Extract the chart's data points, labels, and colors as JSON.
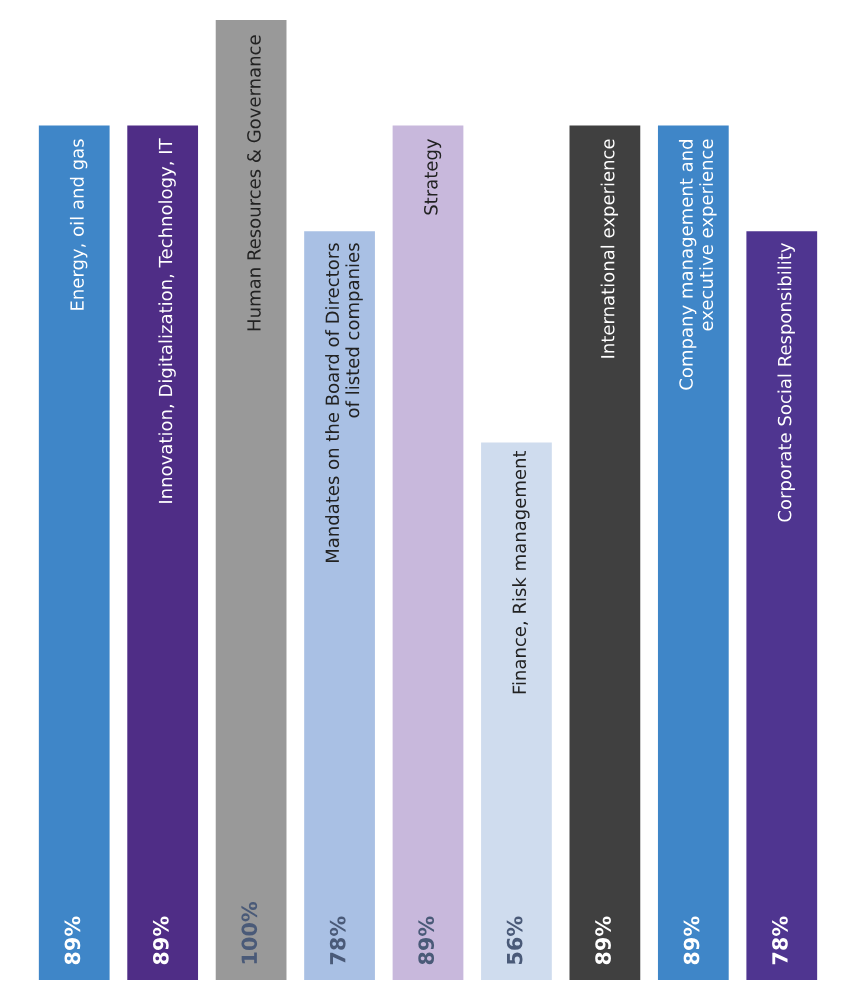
{
  "chart_data": {
    "type": "bar",
    "categories": [
      "Energy, oil and gas",
      "Innovation, Digitalization, Technology, IT",
      "Human Resources & Governance",
      "Mandates on the Board of Directors\nof listed companies",
      "Strategy",
      "Finance, Risk management",
      "International experience",
      "Company management and\nexecutive experience",
      "Corporate Social Responsibility"
    ],
    "values": [
      89,
      89,
      100,
      78,
      89,
      56,
      89,
      89,
      78
    ],
    "value_labels": [
      "89%",
      "89%",
      "100%",
      "78%",
      "89%",
      "56%",
      "89%",
      "89%",
      "78%"
    ],
    "colors": [
      "#3f86c8",
      "#4f2d86",
      "#999999",
      "#a9c0e4",
      "#c8b8dc",
      "#cfdcee",
      "#404040",
      "#3f86c8",
      "#4f3590"
    ],
    "legend": false
  }
}
